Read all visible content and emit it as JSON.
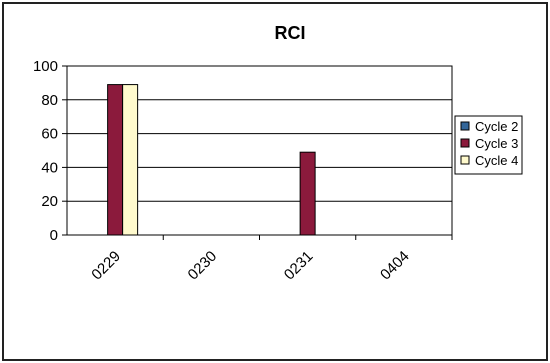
{
  "chart_data": {
    "type": "bar",
    "title": "RCI",
    "xlabel": "",
    "ylabel": "",
    "categories": [
      "0229",
      "0230",
      "0231",
      "0404"
    ],
    "series": [
      {
        "name": "Cycle 2",
        "values": [
          0,
          0,
          0,
          0
        ],
        "color": "#336699"
      },
      {
        "name": "Cycle 3",
        "values": [
          89,
          0,
          49,
          0
        ],
        "color": "#8b1a3c"
      },
      {
        "name": "Cycle 4",
        "values": [
          89,
          0,
          0,
          0
        ],
        "color": "#fffacd"
      }
    ],
    "ylim": [
      0,
      100
    ],
    "yticks": [
      "0",
      "20",
      "40",
      "60",
      "80",
      "100"
    ],
    "grid": true,
    "legend_position": "right"
  }
}
